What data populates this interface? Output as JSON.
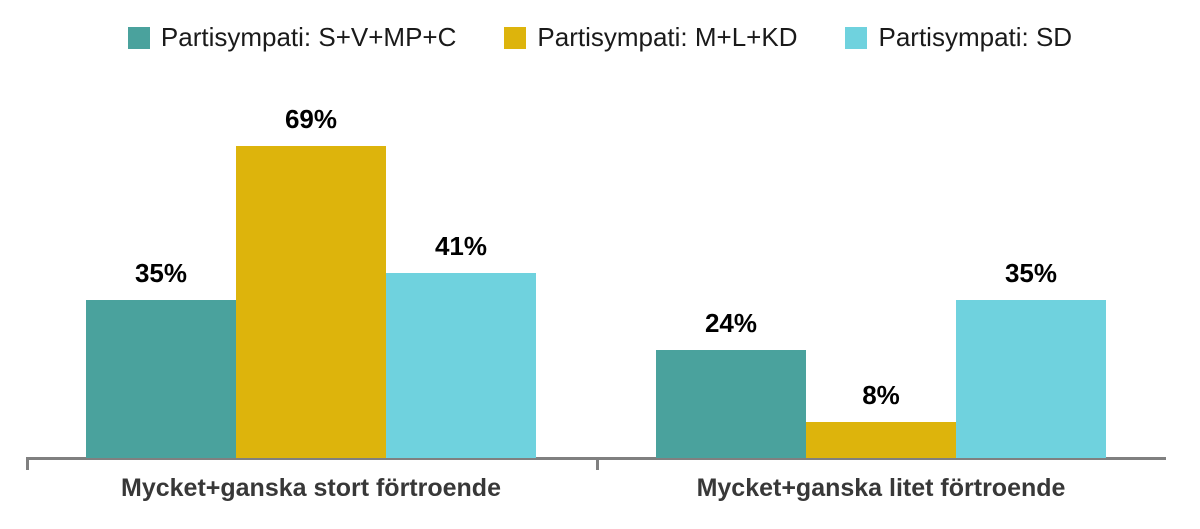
{
  "chart_data": {
    "type": "bar",
    "categories": [
      "Mycket+ganska stort förtroende",
      "Mycket+ganska litet förtroende"
    ],
    "series": [
      {
        "name": "Partisympati: S+V+MP+C",
        "color": "#4AA29D",
        "values": [
          35,
          24
        ]
      },
      {
        "name": "Partisympati: M+L+KD",
        "color": "#DDB40C",
        "values": [
          69,
          8
        ]
      },
      {
        "name": "Partisympati: SD",
        "color": "#6FD2DE",
        "values": [
          41,
          35
        ]
      }
    ],
    "label_suffix": "%",
    "data_labels": true,
    "ylim": [
      0,
      100
    ],
    "grid": false,
    "legend_position": "top",
    "axis_color": "#808080"
  }
}
